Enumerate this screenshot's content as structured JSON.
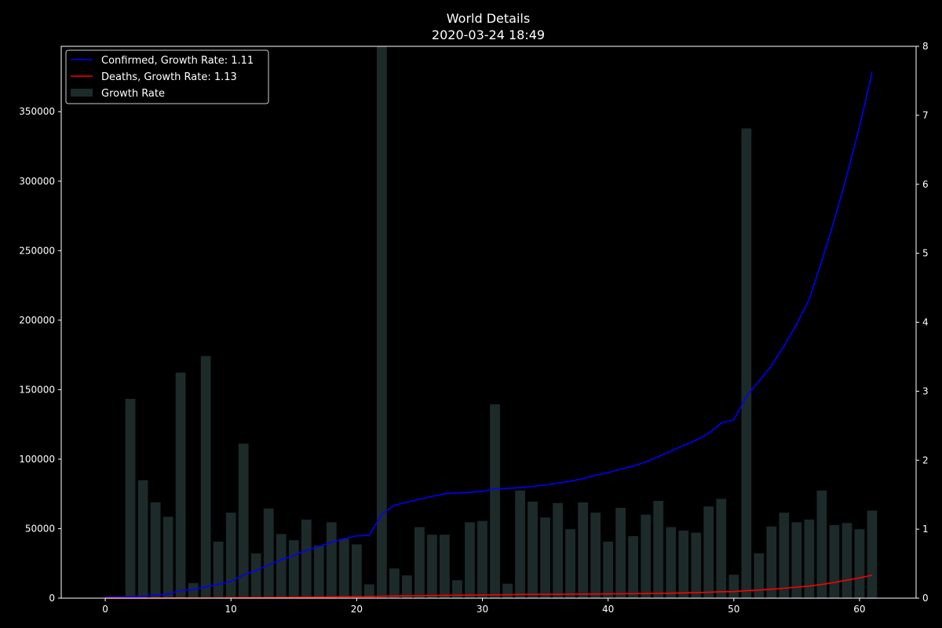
{
  "chart_data": {
    "type": "line",
    "title": "World Details",
    "subtitle": "2020-03-24 18:49",
    "xlabel": "",
    "ylabel": "",
    "ylabel_right": "",
    "xlim": [
      -3.5,
      64.5
    ],
    "ylim": [
      0,
      397000
    ],
    "ylim_right": [
      0,
      8
    ],
    "x_ticks": [
      0,
      10,
      20,
      30,
      40,
      50,
      60
    ],
    "y_ticks": [
      0,
      50000,
      100000,
      150000,
      200000,
      250000,
      300000,
      350000
    ],
    "y_ticks_right": [
      0,
      1,
      2,
      3,
      4,
      5,
      6,
      7,
      8
    ],
    "grid": false,
    "legend_position": "top-left",
    "colors": {
      "background": "#000000",
      "axes": "#ffffff",
      "confirmed": "#0000ff",
      "deaths": "#ff0000",
      "growth_bar": "#1c2a2a"
    },
    "series": [
      {
        "name": "Confirmed, Growth Rate: 1.11",
        "axis": "left",
        "color": "#0000ff",
        "x": [
          0,
          1,
          2,
          3,
          4,
          5,
          6,
          7,
          8,
          9,
          10,
          11,
          12,
          13,
          14,
          15,
          16,
          17,
          18,
          19,
          20,
          21,
          22,
          23,
          24,
          25,
          26,
          27,
          28,
          29,
          30,
          31,
          32,
          33,
          34,
          35,
          36,
          37,
          38,
          39,
          40,
          41,
          42,
          43,
          44,
          45,
          46,
          47,
          48,
          49,
          50,
          51,
          52,
          53,
          54,
          55,
          56,
          57,
          58,
          59,
          60,
          61
        ],
        "values": [
          555,
          654,
          941,
          1434,
          2118,
          2927,
          5578,
          6166,
          8234,
          9927,
          12038,
          16787,
          19881,
          23892,
          27635,
          30794,
          34391,
          37120,
          40150,
          42762,
          44802,
          45221,
          60368,
          66885,
          69030,
          71224,
          73258,
          75136,
          75639,
          76197,
          76819,
          78572,
          78958,
          79561,
          80406,
          81388,
          82746,
          84112,
          86011,
          88369,
          90306,
          92840,
          95120,
          97886,
          101801,
          105847,
          109821,
          113590,
          118620,
          125875,
          128343,
          145193,
          156097,
          167449,
          181546,
          197168,
          214915,
          242713,
          272167,
          304528,
          339259,
          378200
        ]
      },
      {
        "name": "Deaths, Growth Rate: 1.13",
        "axis": "left",
        "color": "#ff0000",
        "x": [
          0,
          1,
          2,
          3,
          4,
          5,
          6,
          7,
          8,
          9,
          10,
          11,
          12,
          13,
          14,
          15,
          16,
          17,
          18,
          19,
          20,
          21,
          22,
          23,
          24,
          25,
          26,
          27,
          28,
          29,
          30,
          31,
          32,
          33,
          34,
          35,
          36,
          37,
          38,
          39,
          40,
          41,
          42,
          43,
          44,
          45,
          46,
          47,
          48,
          49,
          50,
          51,
          52,
          53,
          54,
          55,
          56,
          57,
          58,
          59,
          60,
          61
        ],
        "values": [
          17,
          18,
          26,
          42,
          56,
          82,
          131,
          133,
          171,
          213,
          259,
          362,
          426,
          492,
          564,
          634,
          719,
          806,
          906,
          1013,
          1113,
          1118,
          1371,
          1523,
          1666,
          1770,
          1868,
          2007,
          2122,
          2247,
          2251,
          2458,
          2469,
          2629,
          2708,
          2770,
          2814,
          2872,
          2941,
          2996,
          3085,
          3160,
          3254,
          3348,
          3460,
          3558,
          3802,
          3988,
          4262,
          4615,
          4720,
          5404,
          5819,
          6440,
          7126,
          7905,
          8733,
          9867,
          11299,
          12973,
          14623,
          16524
        ]
      },
      {
        "name": "Growth Rate",
        "type": "bar",
        "axis": "right",
        "color": "#1c2a2a",
        "x": [
          0,
          1,
          2,
          3,
          4,
          5,
          6,
          7,
          8,
          9,
          10,
          11,
          12,
          13,
          14,
          15,
          16,
          17,
          18,
          19,
          20,
          21,
          22,
          23,
          24,
          25,
          26,
          27,
          28,
          29,
          30,
          31,
          32,
          33,
          34,
          35,
          36,
          37,
          38,
          39,
          40,
          41,
          42,
          43,
          44,
          45,
          46,
          47,
          48,
          49,
          50,
          51,
          52,
          53,
          54,
          55,
          56,
          57,
          58,
          59,
          60,
          61
        ],
        "values": [
          0,
          0,
          2.89,
          1.71,
          1.39,
          1.18,
          3.27,
          0.22,
          3.51,
          0.82,
          1.24,
          2.24,
          0.65,
          1.3,
          0.93,
          0.84,
          1.14,
          0.76,
          1.1,
          0.86,
          0.78,
          0.2,
          8.0,
          0.43,
          0.33,
          1.03,
          0.92,
          0.92,
          0.26,
          1.1,
          1.12,
          2.81,
          0.21,
          1.56,
          1.4,
          1.17,
          1.38,
          1.0,
          1.39,
          1.24,
          0.82,
          1.31,
          0.9,
          1.21,
          1.41,
          1.03,
          0.98,
          0.95,
          1.33,
          1.44,
          0.34,
          6.81,
          0.65,
          1.04,
          1.24,
          1.1,
          1.14,
          1.56,
          1.06,
          1.09,
          1.0,
          1.27
        ]
      }
    ]
  }
}
